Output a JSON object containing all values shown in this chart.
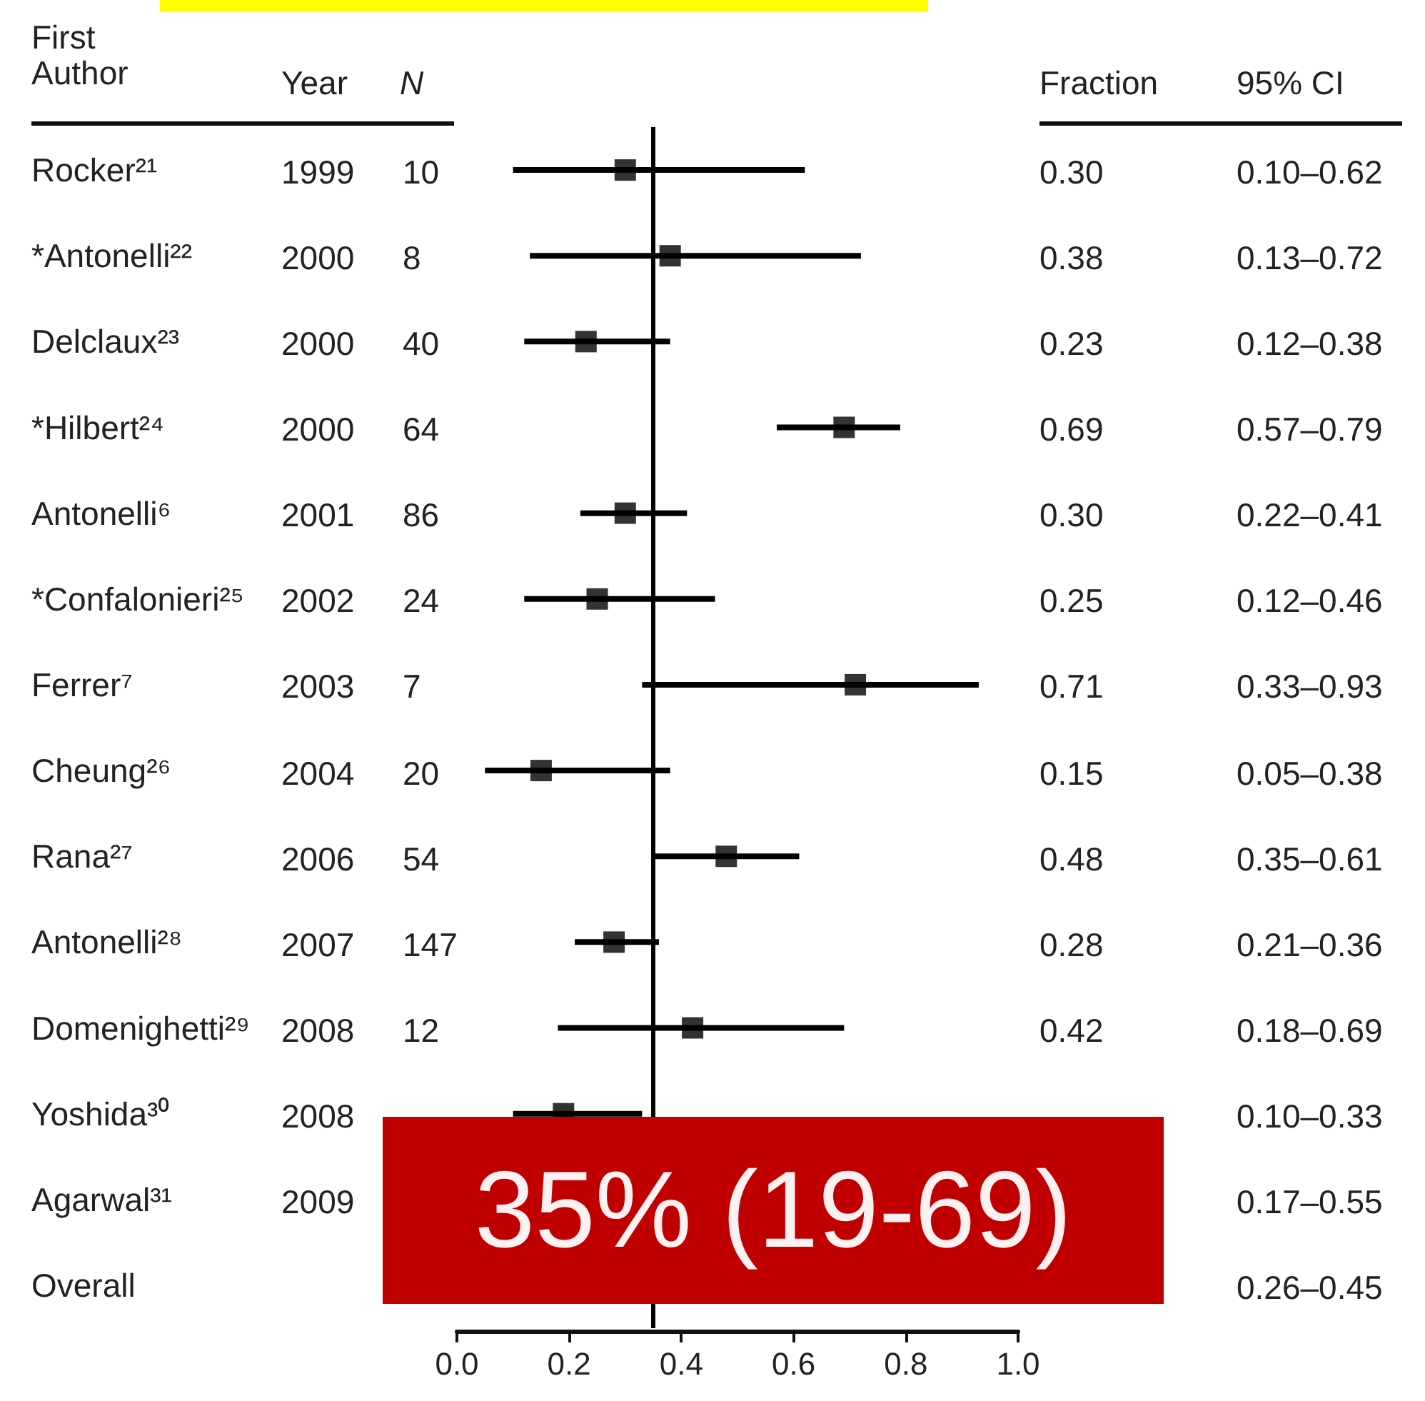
{
  "chart_data": {
    "type": "scatter",
    "orientation": "horizontal",
    "marker": "square",
    "legend": false,
    "grid": false,
    "categories": [
      "Rocker²¹",
      "*Antonelli²²",
      "Delclaux²³",
      "*Hilbert²⁴",
      "Antonelli⁶",
      "*Confalonieri²⁵",
      "Ferrer⁷",
      "Cheung²⁶",
      "Rana²⁷",
      "Antonelli²⁸",
      "Domenighetti²⁹",
      "Yoshida³⁰",
      "Agarwal³¹",
      "Overall"
    ],
    "series": [
      {
        "color": "#000000",
        "values": [
          0.3,
          0.38,
          0.23,
          0.69,
          0.3,
          0.25,
          0.71,
          0.15,
          0.48,
          0.28,
          0.42,
          0.19,
          null,
          null
        ],
        "errors": [
          [
            0.1,
            0.62
          ],
          [
            0.13,
            0.72
          ],
          [
            0.12,
            0.38
          ],
          [
            0.57,
            0.79
          ],
          [
            0.22,
            0.41
          ],
          [
            0.12,
            0.46
          ],
          [
            0.33,
            0.93
          ],
          [
            0.05,
            0.38
          ],
          [
            0.35,
            0.61
          ],
          [
            0.21,
            0.36
          ],
          [
            0.18,
            0.69
          ],
          [
            0.1,
            0.33
          ],
          null,
          null
        ],
        "value_labels": [
          "0.30",
          "0.38",
          "0.23",
          "0.69",
          "0.30",
          "0.25",
          "0.71",
          "0.15",
          "0.48",
          "0.28",
          "0.42",
          null,
          null,
          null
        ]
      }
    ],
    "xlim": [
      0,
      1
    ],
    "xticks": [
      {
        "value": 0,
        "label": "0.0"
      },
      0.2,
      0.4,
      0.6,
      0.8,
      {
        "value": 1,
        "label": "1.0"
      }
    ],
    "ref_lines": [
      {
        "axis": "x",
        "value": 0.35,
        "color": "#000000"
      }
    ],
    "annotations": [
      "First Author",
      "Year",
      "N",
      "Fraction",
      "95% CI",
      "35% (19-69)",
      "1999",
      "10",
      "0.10–0.62",
      "2000",
      "8",
      "0.13–0.72",
      "2000",
      "40",
      "0.12–0.38",
      "2000",
      "64",
      "0.57–0.79",
      "2001",
      "86",
      "0.22–0.41",
      "2002",
      "24",
      "0.12–0.46",
      "2003",
      "7",
      "0.33–0.93",
      "2004",
      "20",
      "0.05–0.38",
      "2006",
      "54",
      "0.35–0.61",
      "2007",
      "147",
      "0.21–0.36",
      "2008",
      "12",
      "0.18–0.69",
      "2008",
      null,
      "0.10–0.33",
      "2009",
      null,
      "0.17–0.55",
      null,
      null,
      "0.26–0.45"
    ]
  }
}
